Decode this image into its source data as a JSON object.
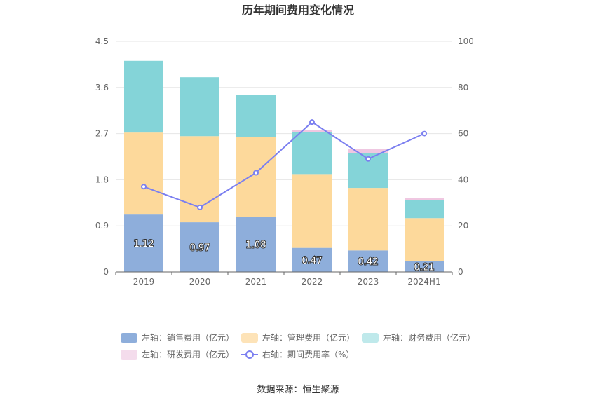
{
  "chart_data": {
    "type": "bar",
    "title": "历年期间费用变化情况",
    "categories": [
      "2019",
      "2020",
      "2021",
      "2022",
      "2023",
      "2024H1"
    ],
    "left_axis": {
      "ylim": [
        0,
        4.5
      ],
      "ticks": [
        "0",
        "0.9",
        "1.8",
        "2.7",
        "3.6",
        "4.5"
      ]
    },
    "right_axis": {
      "ylim": [
        0,
        100
      ],
      "ticks": [
        "0",
        "20",
        "40",
        "60",
        "80",
        "100"
      ]
    },
    "stacked_series": [
      {
        "name": "左轴：销售费用（亿元）",
        "color": "#8eaedb",
        "values": [
          1.12,
          0.97,
          1.08,
          0.47,
          0.42,
          0.21
        ]
      },
      {
        "name": "左轴：管理费用（亿元）",
        "color": "#fdd99b",
        "values": [
          1.6,
          1.68,
          1.56,
          1.44,
          1.22,
          0.84
        ]
      },
      {
        "name": "左轴：财务费用（亿元）",
        "color": "#84d4d8",
        "values": [
          1.4,
          1.15,
          0.82,
          0.82,
          0.68,
          0.35
        ]
      },
      {
        "name": "左轴：研发费用（亿元）",
        "color": "#efc7e1",
        "values": [
          0,
          0,
          0,
          0.04,
          0.08,
          0.04
        ]
      }
    ],
    "line_series": {
      "name": "右轴：期间费用率（%）",
      "color": "#7b7ff0",
      "values": [
        37,
        28,
        43,
        65,
        49,
        60
      ]
    },
    "data_labels": [
      "1.12",
      "0.97",
      "1.08",
      "0.47",
      "0.42",
      "0.21"
    ]
  },
  "legend": [
    {
      "label": "左轴：销售费用（亿元）",
      "color": "#8eaedb",
      "kind": "box"
    },
    {
      "label": "左轴：管理费用（亿元）",
      "color": "#fde3b8",
      "kind": "box"
    },
    {
      "label": "左轴：财务费用（亿元）",
      "color": "#bfe9eb",
      "kind": "box"
    },
    {
      "label": "左轴：研发费用（亿元）",
      "color": "#f4dcec",
      "kind": "box"
    },
    {
      "label": "右轴：期间费用率（%）",
      "color": "#7b7ff0",
      "kind": "line"
    }
  ],
  "source": "数据来源：恒生聚源"
}
